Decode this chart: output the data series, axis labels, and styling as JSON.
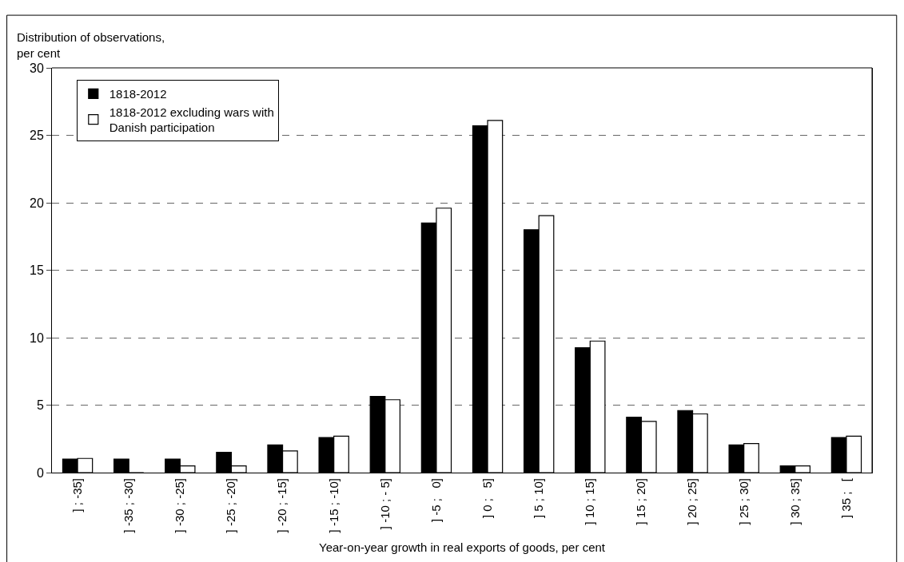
{
  "chart_data": {
    "type": "bar",
    "ylabel": "Distribution of observations, per cent",
    "xlabel": "Year-on-year growth in real exports of goods, per cent",
    "categories": [
      "] ; -35]",
      "] -35 ; -30]",
      "] -30 ; -25]",
      "] -25 ; -20]",
      "] -20 ; -15]",
      "] -15 ; -10]",
      "] -10 ; - 5]",
      "] -5 ;   0]",
      "] 0 ;   5]",
      "] 5 ; 10]",
      "] 10 ; 15]",
      "] 15 ; 20]",
      "] 20 ; 25]",
      "] 25 ; 30]",
      "] 30 ; 35]",
      "] 35 ;   ["
    ],
    "series": [
      {
        "name": "1818-2012",
        "color": "#000000",
        "values": [
          1.0,
          1.0,
          1.0,
          1.5,
          2.05,
          2.6,
          5.65,
          18.5,
          25.7,
          18.0,
          9.25,
          4.1,
          4.6,
          2.05,
          0.5,
          2.6
        ]
      },
      {
        "name": "1818-2012 excluding wars with Danish participation",
        "color": "#ffffff",
        "values": [
          1.05,
          0,
          0.5,
          0.5,
          1.6,
          2.7,
          5.4,
          19.6,
          26.1,
          19.05,
          9.75,
          3.8,
          4.35,
          2.15,
          0.5,
          2.7
        ]
      }
    ],
    "ylim": [
      0,
      30
    ],
    "yticks": [
      0,
      5,
      10,
      15,
      20,
      25,
      30
    ],
    "grid": "y",
    "legend": "top left"
  }
}
